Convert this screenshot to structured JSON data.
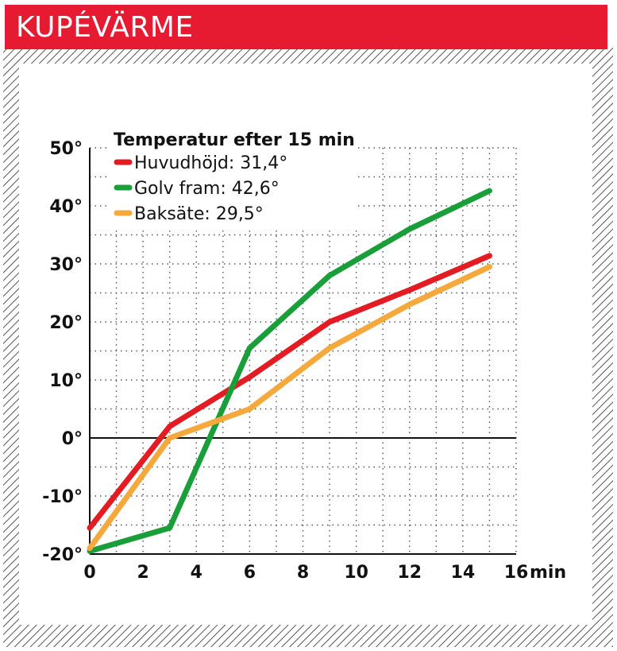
{
  "header": {
    "title": "KUPÉVÄRME"
  },
  "colors": {
    "accent": "#e61a30",
    "red": "#e31b23",
    "green": "#1a9e3a",
    "orange": "#f5a83c"
  },
  "chart_data": {
    "type": "line",
    "title": "Temperatur efter 15 min",
    "xlabel": "min",
    "ylabel": "",
    "xlim": [
      0,
      16
    ],
    "ylim": [
      -20,
      50
    ],
    "x_ticks": [
      0,
      2,
      4,
      6,
      8,
      10,
      12,
      14,
      16
    ],
    "x_tick_labels": [
      "0",
      "2",
      "4",
      "6",
      "8",
      "10",
      "12",
      "14",
      "16"
    ],
    "y_ticks": [
      50,
      40,
      30,
      20,
      10,
      0,
      -10,
      -20
    ],
    "y_tick_labels": [
      "50°",
      "40°",
      "30°",
      "20°",
      "10°",
      "0°",
      "-10°",
      "-20°"
    ],
    "grid": true,
    "legend_placement": "top-left",
    "series": [
      {
        "name": "Huvudhöjd: 31,4°",
        "color": "#e31b23",
        "x": [
          0,
          3,
          6,
          9,
          12,
          15
        ],
        "y": [
          -15.5,
          2,
          10.5,
          20,
          25.5,
          31.4
        ]
      },
      {
        "name": "Golv fram: 42,6°",
        "color": "#1a9e3a",
        "x": [
          0,
          3,
          6,
          9,
          12,
          15
        ],
        "y": [
          -19.5,
          -15.5,
          15.5,
          28,
          36,
          42.6
        ]
      },
      {
        "name": "Baksäte: 29,5°",
        "color": "#f5a83c",
        "x": [
          0,
          3,
          6,
          9,
          12,
          15
        ],
        "y": [
          -19,
          0,
          5,
          15.5,
          23,
          29.5
        ]
      }
    ]
  }
}
